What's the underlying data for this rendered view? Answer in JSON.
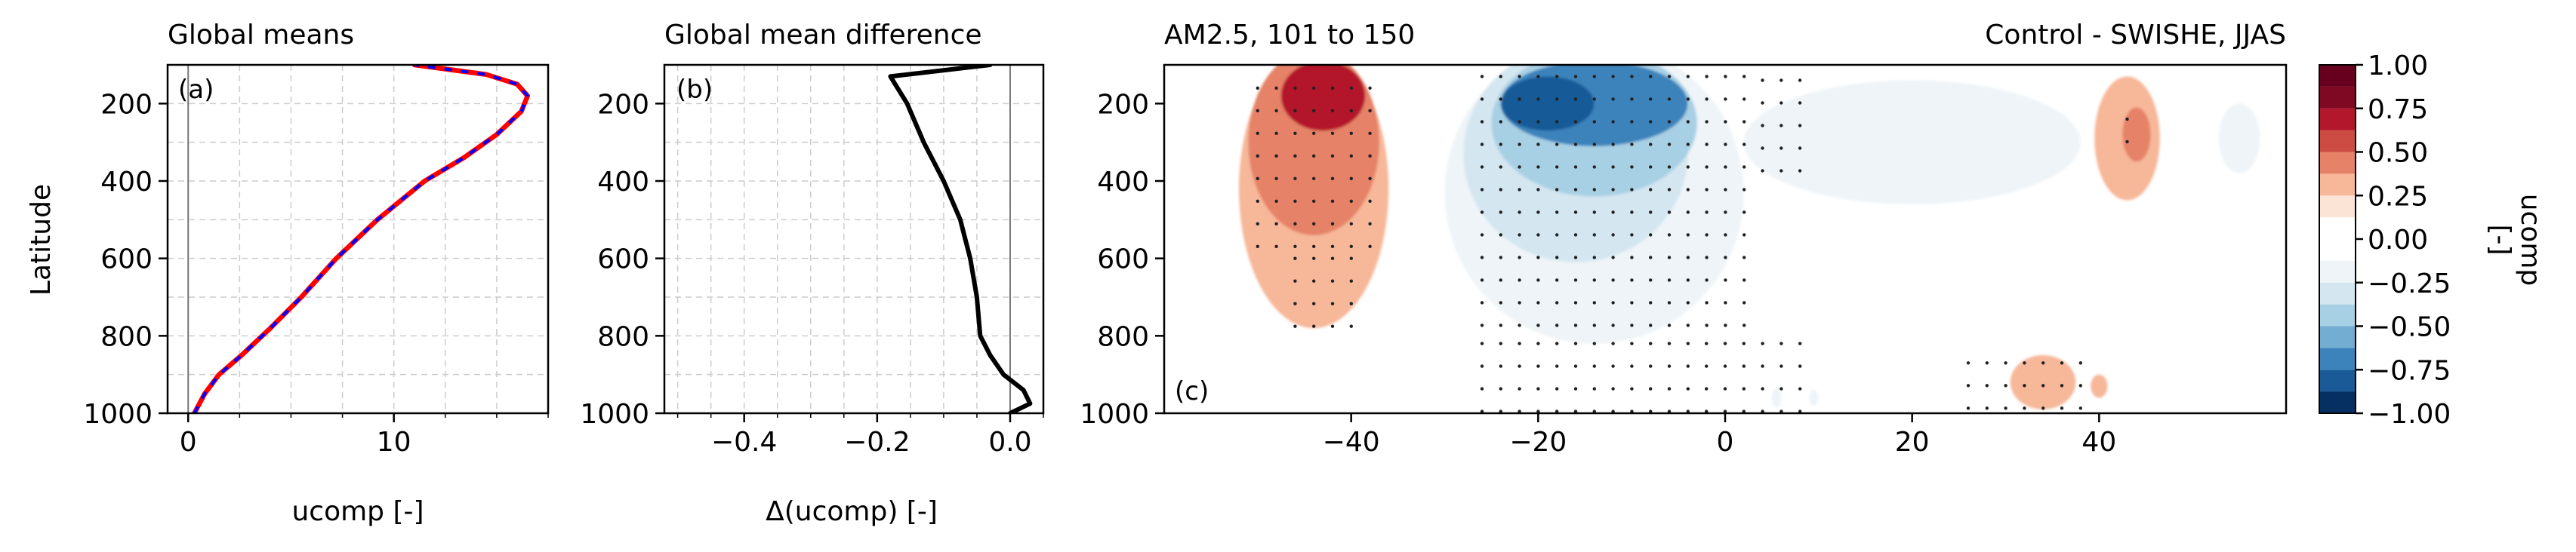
{
  "chart_data": [
    {
      "id": "a",
      "type": "line",
      "title": "Global means",
      "panel_label": "(a)",
      "xlabel": "ucomp [-]",
      "ylabel": "Latitude",
      "xlim": [
        -1,
        17.5
      ],
      "ylim": [
        1000,
        100
      ],
      "xticks": [
        0,
        10
      ],
      "xtick_labels": [
        "0",
        "10"
      ],
      "yticks": [
        200,
        400,
        600,
        800,
        1000
      ],
      "ytick_labels": [
        "200",
        "400",
        "600",
        "800",
        "1000"
      ],
      "grid": true,
      "series": [
        {
          "color": "#ff0000",
          "x": [
            0.3,
            0.8,
            1.5,
            2.6,
            4.0,
            5.5,
            7.2,
            9.2,
            11.5,
            13.4,
            15.0,
            16.2,
            16.5,
            16.0,
            14.5,
            11.0
          ],
          "y": [
            1000,
            950,
            900,
            850,
            780,
            700,
            600,
            500,
            400,
            340,
            280,
            220,
            180,
            150,
            125,
            100
          ]
        },
        {
          "color": "#0000ff",
          "dashed": true,
          "x": [
            0.3,
            0.8,
            1.5,
            2.6,
            4.0,
            5.5,
            7.2,
            9.2,
            11.5,
            13.4,
            15.0,
            16.2,
            16.5,
            16.0,
            14.5,
            11.0
          ],
          "y": [
            1000,
            950,
            900,
            850,
            780,
            700,
            600,
            500,
            400,
            340,
            280,
            220,
            180,
            150,
            125,
            100
          ]
        }
      ]
    },
    {
      "id": "b",
      "type": "line",
      "title": "Global mean difference",
      "panel_label": "(b)",
      "xlabel": "Δ(ucomp) [-]",
      "xlim": [
        -0.52,
        0.05
      ],
      "ylim": [
        1000,
        100
      ],
      "xticks": [
        -0.4,
        -0.2,
        0.0
      ],
      "xtick_labels": [
        "−0.4",
        "−0.2",
        "0.0"
      ],
      "yticks": [
        200,
        400,
        600,
        800,
        1000
      ],
      "ytick_labels": [
        "200",
        "400",
        "600",
        "800",
        "1000"
      ],
      "grid": true,
      "series": [
        {
          "color": "#000000",
          "x": [
            -0.03,
            -0.18,
            -0.155,
            -0.13,
            -0.1,
            -0.075,
            -0.06,
            -0.05,
            -0.045,
            -0.03,
            -0.01,
            0.02,
            0.03,
            0.0
          ],
          "y": [
            100,
            130,
            200,
            300,
            400,
            500,
            600,
            700,
            800,
            850,
            900,
            940,
            975,
            1000
          ]
        }
      ]
    },
    {
      "id": "c",
      "type": "heatmap",
      "title": "AM2.5, 101 to 150",
      "subtitle": "Control - SWISHE, JJAS",
      "panel_label": "(c)",
      "xlim": [
        -60,
        60
      ],
      "ylim": [
        1000,
        100
      ],
      "xticks": [
        -40,
        -20,
        0,
        20,
        40
      ],
      "xtick_labels": [
        "−40",
        "−20",
        "0",
        "20",
        "40"
      ],
      "yticks": [
        200,
        400,
        600,
        800,
        1000
      ],
      "ytick_labels": [
        "200",
        "400",
        "600",
        "800",
        "1000"
      ],
      "levels": [
        -1.0,
        -0.875,
        -0.75,
        -0.625,
        -0.5,
        -0.375,
        -0.25,
        -0.125,
        0.125,
        0.25,
        0.375,
        0.5,
        0.625,
        0.75,
        0.875,
        1.0
      ],
      "level_colors": [
        "#053061",
        "#195a97",
        "#3c83bb",
        "#73aed2",
        "#a8d0e4",
        "#d4e6f0",
        "#eef4f8",
        "#ffffff",
        "#fbe4d6",
        "#f7b799",
        "#e58268",
        "#cc4c43",
        "#b3172c",
        "#7f0822",
        "#67001f"
      ],
      "regions": [
        {
          "level": 0.25,
          "center": [
            -44,
            420
          ],
          "rx": 8,
          "ry": 360
        },
        {
          "level": 0.375,
          "center": [
            -44,
            300
          ],
          "rx": 7,
          "ry": 240
        },
        {
          "level": 0.625,
          "center": [
            -43,
            180
          ],
          "rx": 4.5,
          "ry": 90
        },
        {
          "level": 0.25,
          "center": [
            43,
            290
          ],
          "rx": 3.5,
          "ry": 160
        },
        {
          "level": 0.375,
          "center": [
            44,
            280
          ],
          "rx": 1.5,
          "ry": 70
        },
        {
          "level": 0.25,
          "center": [
            34,
            920
          ],
          "rx": 3.5,
          "ry": 70
        },
        {
          "level": 0.25,
          "center": [
            40,
            930
          ],
          "rx": 0.9,
          "ry": 30
        },
        {
          "level": -0.25,
          "center": [
            -14,
            430
          ],
          "rx": 16,
          "ry": 390
        },
        {
          "level": -0.25,
          "center": [
            20,
            300
          ],
          "rx": 18,
          "ry": 160
        },
        {
          "level": -0.25,
          "center": [
            55,
            290
          ],
          "rx": 2.2,
          "ry": 90
        },
        {
          "level": -0.375,
          "center": [
            -16,
            330
          ],
          "rx": 12,
          "ry": 280
        },
        {
          "level": -0.5,
          "center": [
            -14,
            250
          ],
          "rx": 11,
          "ry": 190
        },
        {
          "level": -0.75,
          "center": [
            -14,
            200
          ],
          "rx": 10,
          "ry": 110
        },
        {
          "level": -0.875,
          "center": [
            -19,
            200
          ],
          "rx": 5,
          "ry": 70
        },
        {
          "level": -0.25,
          "center": [
            5.5,
            960
          ],
          "rx": 0.5,
          "ry": 25
        },
        {
          "level": -0.25,
          "center": [
            9.5,
            960
          ],
          "rx": 0.5,
          "ry": 20
        }
      ],
      "stipple_regions": [
        {
          "x": [
            -50,
            -36
          ],
          "y": [
            160,
            600
          ]
        },
        {
          "x": [
            -46,
            -38
          ],
          "y": [
            600,
            830
          ]
        },
        {
          "x": [
            -26,
            4
          ],
          "y": [
            130,
            820
          ]
        },
        {
          "x": [
            4,
            10
          ],
          "y": [
            140,
            420
          ]
        },
        {
          "x": [
            -26,
            -2
          ],
          "y": [
            820,
            1000
          ]
        },
        {
          "x": [
            -2,
            10
          ],
          "y": [
            820,
            1000
          ]
        },
        {
          "x": [
            26,
            40
          ],
          "y": [
            870,
            1000
          ]
        },
        {
          "x": [
            43,
            44
          ],
          "y": [
            240,
            320
          ]
        }
      ],
      "colorbar": {
        "label": "ucomp\n[-]",
        "ticks": [
          1.0,
          0.75,
          0.5,
          0.25,
          0.0,
          -0.25,
          -0.5,
          -0.75,
          -1.0
        ],
        "tick_labels": [
          "1.00",
          "0.75",
          "0.50",
          "0.25",
          "0.00",
          "−0.25",
          "−0.50",
          "−0.75",
          "−1.00"
        ]
      }
    }
  ]
}
